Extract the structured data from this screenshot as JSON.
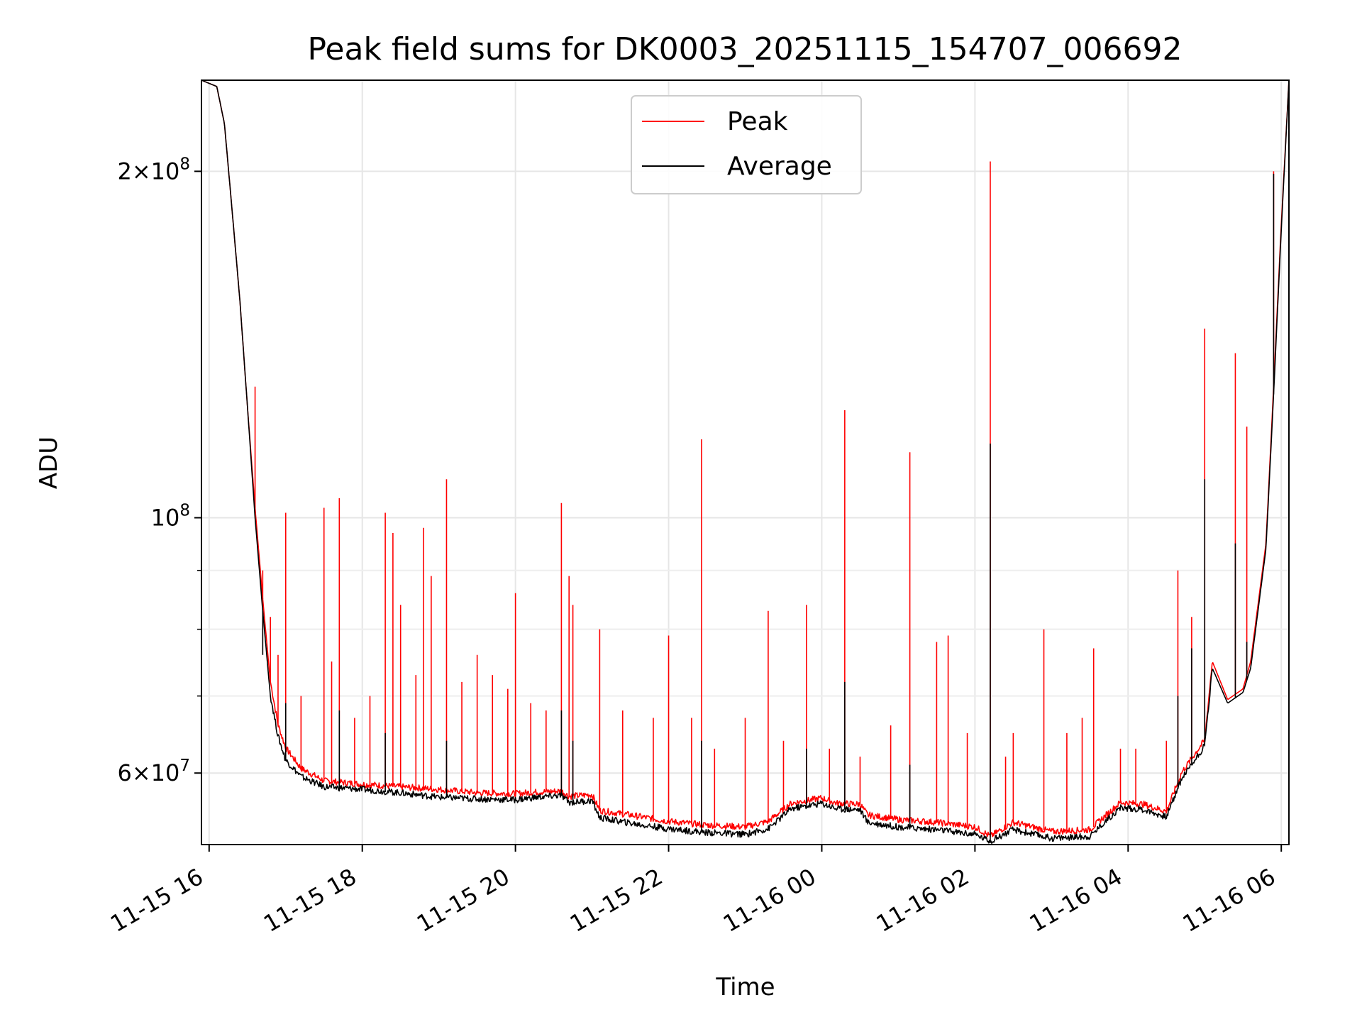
{
  "chart_data": {
    "type": "line",
    "title": "Peak field sums for DK0003_20251115_154707_006692",
    "xlabel": "Time",
    "ylabel": "ADU",
    "x_unit": "hours since 11-15 16:00",
    "xlim": [
      -0.1,
      14.1
    ],
    "ylim": [
      52000000,
      240000000
    ],
    "yscale": "log",
    "grid": true,
    "legend_position": "top-center",
    "x_ticks": [
      {
        "value": 0,
        "label": "11-15 16"
      },
      {
        "value": 2,
        "label": "11-15 18"
      },
      {
        "value": 4,
        "label": "11-15 20"
      },
      {
        "value": 6,
        "label": "11-15 22"
      },
      {
        "value": 8,
        "label": "11-16 00"
      },
      {
        "value": 10,
        "label": "11-16 02"
      },
      {
        "value": 12,
        "label": "11-16 04"
      },
      {
        "value": 14,
        "label": "11-16 06"
      }
    ],
    "y_ticks": [
      {
        "value": 60000000,
        "mant": "6",
        "exp": "7"
      },
      {
        "value": 100000000,
        "mant": "",
        "exp": "8"
      },
      {
        "value": 200000000,
        "mant": "2",
        "exp": "8"
      }
    ],
    "y_minor_ticks": [
      70000000,
      80000000,
      90000000
    ],
    "colors": {
      "peak": "#ff0000",
      "average": "#000000"
    },
    "series": [
      {
        "name": "Peak",
        "color": "#ff0000",
        "baseline": [
          [
            -0.1,
            240000000
          ],
          [
            0.1,
            237000000
          ],
          [
            0.2,
            220000000
          ],
          [
            0.3,
            185000000
          ],
          [
            0.4,
            155000000
          ],
          [
            0.5,
            125000000
          ],
          [
            0.6,
            102000000
          ],
          [
            0.7,
            85000000
          ],
          [
            0.8,
            72000000
          ],
          [
            0.9,
            66000000
          ],
          [
            1.0,
            63000000
          ],
          [
            1.2,
            60500000
          ],
          [
            1.5,
            59000000
          ],
          [
            2.0,
            58600000
          ],
          [
            2.5,
            58300000
          ],
          [
            3.0,
            58000000
          ],
          [
            3.5,
            57600000
          ],
          [
            4.0,
            57500000
          ],
          [
            4.3,
            57700000
          ],
          [
            4.6,
            57800000
          ],
          [
            4.7,
            57200000
          ],
          [
            5.0,
            57400000
          ],
          [
            5.1,
            55600000
          ],
          [
            5.5,
            55100000
          ],
          [
            6.0,
            54400000
          ],
          [
            6.5,
            54000000
          ],
          [
            7.0,
            53800000
          ],
          [
            7.3,
            54400000
          ],
          [
            7.6,
            56400000
          ],
          [
            8.0,
            57000000
          ],
          [
            8.2,
            56400000
          ],
          [
            8.5,
            56300000
          ],
          [
            8.6,
            55100000
          ],
          [
            9.0,
            54600000
          ],
          [
            9.5,
            54300000
          ],
          [
            10.0,
            53800000
          ],
          [
            10.2,
            52800000
          ],
          [
            10.5,
            54300000
          ],
          [
            11.0,
            53300000
          ],
          [
            11.5,
            53500000
          ],
          [
            11.7,
            55000000
          ],
          [
            11.9,
            56500000
          ],
          [
            12.2,
            56300000
          ],
          [
            12.5,
            55500000
          ],
          [
            12.7,
            60000000
          ],
          [
            13.0,
            64000000
          ],
          [
            13.1,
            75000000
          ],
          [
            13.3,
            69500000
          ],
          [
            13.5,
            71000000
          ],
          [
            13.6,
            75000000
          ],
          [
            13.8,
            95000000
          ],
          [
            13.9,
            130000000
          ],
          [
            14.0,
            180000000
          ],
          [
            14.1,
            240000000
          ]
        ],
        "spikes": [
          [
            0.5,
            125000000
          ],
          [
            0.6,
            130000000
          ],
          [
            0.7,
            90000000
          ],
          [
            0.8,
            82000000
          ],
          [
            0.9,
            76000000
          ],
          [
            1.0,
            101000000
          ],
          [
            1.2,
            70000000
          ],
          [
            1.5,
            102000000
          ],
          [
            1.6,
            75000000
          ],
          [
            1.7,
            104000000
          ],
          [
            1.9,
            67000000
          ],
          [
            2.1,
            70000000
          ],
          [
            2.3,
            101000000
          ],
          [
            2.4,
            97000000
          ],
          [
            2.5,
            84000000
          ],
          [
            2.7,
            73000000
          ],
          [
            2.8,
            98000000
          ],
          [
            2.9,
            89000000
          ],
          [
            3.1,
            108000000
          ],
          [
            3.3,
            72000000
          ],
          [
            3.5,
            76000000
          ],
          [
            3.7,
            73000000
          ],
          [
            3.9,
            71000000
          ],
          [
            4.0,
            86000000
          ],
          [
            4.2,
            69000000
          ],
          [
            4.4,
            68000000
          ],
          [
            4.6,
            103000000
          ],
          [
            4.7,
            89000000
          ],
          [
            4.75,
            84000000
          ],
          [
            5.1,
            80000000
          ],
          [
            5.4,
            68000000
          ],
          [
            5.8,
            67000000
          ],
          [
            6.0,
            79000000
          ],
          [
            6.3,
            67000000
          ],
          [
            6.43,
            117000000
          ],
          [
            6.6,
            63000000
          ],
          [
            7.0,
            67000000
          ],
          [
            7.3,
            83000000
          ],
          [
            7.5,
            64000000
          ],
          [
            7.8,
            84000000
          ],
          [
            8.1,
            63000000
          ],
          [
            8.3,
            124000000
          ],
          [
            8.5,
            62000000
          ],
          [
            8.9,
            66000000
          ],
          [
            9.15,
            114000000
          ],
          [
            9.5,
            78000000
          ],
          [
            9.65,
            79000000
          ],
          [
            9.9,
            65000000
          ],
          [
            10.2,
            204000000
          ],
          [
            10.4,
            62000000
          ],
          [
            10.5,
            65000000
          ],
          [
            10.9,
            80000000
          ],
          [
            11.2,
            65000000
          ],
          [
            11.4,
            67000000
          ],
          [
            11.55,
            77000000
          ],
          [
            11.9,
            63000000
          ],
          [
            12.1,
            63000000
          ],
          [
            12.5,
            64000000
          ],
          [
            12.65,
            90000000
          ],
          [
            12.83,
            82000000
          ],
          [
            13.0,
            146000000
          ],
          [
            13.4,
            139000000
          ],
          [
            13.55,
            120000000
          ],
          [
            13.9,
            200000000
          ]
        ]
      },
      {
        "name": "Average",
        "color": "#000000",
        "baseline": [
          [
            -0.1,
            240000000
          ],
          [
            0.1,
            237000000
          ],
          [
            0.2,
            220000000
          ],
          [
            0.3,
            185000000
          ],
          [
            0.4,
            155000000
          ],
          [
            0.5,
            125000000
          ],
          [
            0.6,
            100000000
          ],
          [
            0.7,
            83000000
          ],
          [
            0.8,
            70000000
          ],
          [
            0.9,
            64500000
          ],
          [
            1.0,
            61500000
          ],
          [
            1.2,
            59500000
          ],
          [
            1.5,
            58300000
          ],
          [
            2.0,
            58000000
          ],
          [
            2.5,
            57600000
          ],
          [
            3.0,
            57100000
          ],
          [
            3.5,
            56900000
          ],
          [
            4.0,
            56800000
          ],
          [
            4.3,
            57100000
          ],
          [
            4.6,
            57300000
          ],
          [
            4.7,
            56500000
          ],
          [
            5.0,
            56700000
          ],
          [
            5.1,
            54800000
          ],
          [
            5.5,
            54200000
          ],
          [
            6.0,
            53600000
          ],
          [
            6.5,
            53200000
          ],
          [
            7.0,
            53000000
          ],
          [
            7.3,
            53600000
          ],
          [
            7.6,
            55800000
          ],
          [
            8.0,
            56400000
          ],
          [
            8.2,
            55800000
          ],
          [
            8.5,
            55700000
          ],
          [
            8.6,
            54300000
          ],
          [
            9.0,
            53800000
          ],
          [
            9.5,
            53500000
          ],
          [
            10.0,
            53000000
          ],
          [
            10.2,
            52300000
          ],
          [
            10.5,
            53500000
          ],
          [
            11.0,
            52600000
          ],
          [
            11.5,
            52800000
          ],
          [
            11.7,
            54400000
          ],
          [
            11.9,
            55900000
          ],
          [
            12.2,
            55700000
          ],
          [
            12.5,
            54900000
          ],
          [
            12.7,
            59300000
          ],
          [
            13.0,
            63300000
          ],
          [
            13.1,
            74000000
          ],
          [
            13.3,
            69000000
          ],
          [
            13.5,
            70500000
          ],
          [
            13.6,
            74000000
          ],
          [
            13.8,
            94000000
          ],
          [
            13.9,
            128000000
          ],
          [
            14.0,
            178000000
          ],
          [
            14.1,
            240000000
          ]
        ],
        "spikes": [
          [
            0.7,
            76000000
          ],
          [
            1.0,
            69000000
          ],
          [
            1.7,
            68000000
          ],
          [
            2.3,
            65000000
          ],
          [
            3.1,
            64000000
          ],
          [
            4.6,
            68000000
          ],
          [
            4.75,
            64000000
          ],
          [
            6.43,
            64000000
          ],
          [
            7.8,
            63000000
          ],
          [
            8.3,
            72000000
          ],
          [
            9.15,
            61000000
          ],
          [
            10.2,
            116000000
          ],
          [
            12.65,
            70000000
          ],
          [
            12.83,
            77000000
          ],
          [
            13.0,
            108000000
          ],
          [
            13.4,
            95000000
          ],
          [
            13.55,
            78000000
          ],
          [
            13.9,
            199000000
          ]
        ]
      }
    ]
  }
}
